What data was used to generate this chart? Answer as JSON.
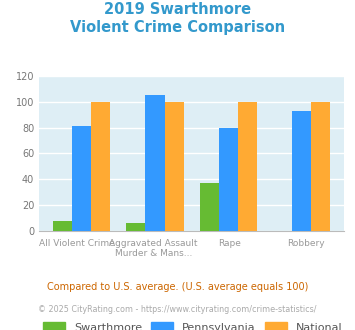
{
  "title_line1": "2019 Swarthmore",
  "title_line2": "Violent Crime Comparison",
  "title_color": "#3399cc",
  "swarthmore": [
    8,
    6,
    37,
    0
  ],
  "pennsylvania": [
    81,
    105,
    80,
    93
  ],
  "national": [
    100,
    100,
    100,
    100
  ],
  "swarthmore_color": "#66bb33",
  "pennsylvania_color": "#3399ff",
  "national_color": "#ffaa33",
  "ylim": [
    0,
    120
  ],
  "yticks": [
    0,
    20,
    40,
    60,
    80,
    100,
    120
  ],
  "bg_color": "#deeef5",
  "legend_labels": [
    "Swarthmore",
    "Pennsylvania",
    "National"
  ],
  "x_top_labels": [
    "",
    "Aggravated Assault",
    "",
    ""
  ],
  "x_bot_labels": [
    "All Violent Crime",
    "Murder & Mans...",
    "Rape",
    "Robbery"
  ],
  "footnote1": "Compared to U.S. average. (U.S. average equals 100)",
  "footnote2": "© 2025 CityRating.com - https://www.cityrating.com/crime-statistics/",
  "footnote1_color": "#cc6600",
  "footnote2_color": "#aaaaaa"
}
